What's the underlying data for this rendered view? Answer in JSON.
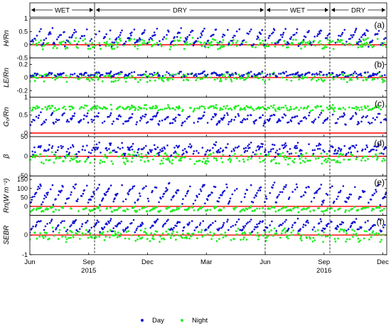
{
  "chart_data": {
    "type": "scatter",
    "seasons": [
      {
        "label": "WET",
        "start": 0.0,
        "end": 3.3
      },
      {
        "label": "DRY",
        "start": 3.3,
        "end": 12.0
      },
      {
        "label": "WET",
        "start": 12.0,
        "end": 15.3
      },
      {
        "label": "DRY",
        "start": 15.3,
        "end": 18.2
      }
    ],
    "x_month_index_range": [
      0,
      18.2
    ],
    "xticks": [
      {
        "pos": 0,
        "label": "Jun",
        "year": ""
      },
      {
        "pos": 3,
        "label": "Sep",
        "year": "2015"
      },
      {
        "pos": 6,
        "label": "Dec",
        "year": ""
      },
      {
        "pos": 9,
        "label": "Mar",
        "year": ""
      },
      {
        "pos": 12,
        "label": "Jun",
        "year": ""
      },
      {
        "pos": 15,
        "label": "Sep",
        "year": "2016"
      },
      {
        "pos": 18,
        "label": "Dec",
        "year": ""
      }
    ],
    "panels": [
      {
        "id": "a",
        "label": "(a)",
        "ylabel": "H/Rn",
        "ylim": [
          -0.5,
          1
        ],
        "yticks": [
          "1",
          "0.5",
          "0",
          "-0.5"
        ],
        "ytick_values": [
          1,
          0.5,
          0,
          -0.5
        ],
        "refline": 0,
        "day": {
          "base": 0.0,
          "amp": 0.6,
          "noise": 0.08
        },
        "night": {
          "base": 0.05,
          "amp": 0.2,
          "noise": 0.15
        }
      },
      {
        "id": "b",
        "label": "(b)",
        "ylabel": "LE/Rn",
        "ylim": [
          -0.3,
          0.3
        ],
        "yticks": [
          "0.2",
          "0",
          "-0.2"
        ],
        "ytick_values": [
          0.2,
          0,
          -0.2
        ],
        "refline": 0,
        "day": {
          "base": 0.02,
          "amp": 0.06,
          "noise": 0.02
        },
        "night": {
          "base": 0.0,
          "amp": 0.05,
          "noise": 0.06
        }
      },
      {
        "id": "c",
        "label": "(c)",
        "ylabel": "G₀/Rn",
        "ylim": [
          -0.1,
          1
        ],
        "yticks": [
          "1",
          "0.5",
          "0"
        ],
        "ytick_values": [
          1,
          0.5,
          0
        ],
        "refline": 0,
        "day": {
          "base": 0.25,
          "amp": 0.3,
          "noise": 0.05
        },
        "night": {
          "base": 0.7,
          "amp": 0.1,
          "noise": 0.05
        }
      },
      {
        "id": "d",
        "label": "(d)",
        "ylabel": "β",
        "ylim": [
          -50,
          50
        ],
        "yticks": [
          "50",
          "0",
          "-50"
        ],
        "ytick_values": [
          50,
          0,
          -50
        ],
        "refline": 0,
        "day": {
          "base": 5,
          "amp": 25,
          "noise": 8
        },
        "night": {
          "base": -5,
          "amp": 10,
          "noise": 12
        }
      },
      {
        "id": "e",
        "label": "(e)",
        "ylabel": "Rn(W m⁻²)",
        "ylim": [
          -50,
          170
        ],
        "yticks": [
          "150",
          "100",
          "50",
          "0"
        ],
        "ytick_values": [
          150,
          100,
          50,
          0
        ],
        "refline": 0,
        "day": {
          "base": 20,
          "amp": 110,
          "noise": 12
        },
        "night": {
          "base": -15,
          "amp": 25,
          "noise": 6
        }
      },
      {
        "id": "f",
        "label": "(f)",
        "ylabel": "SEBR",
        "ylim": [
          -1,
          1
        ],
        "yticks": [
          "0",
          "-1"
        ],
        "ytick_values": [
          0,
          -1
        ],
        "refline": 0,
        "day": {
          "base": 0.2,
          "amp": 0.6,
          "noise": 0.08
        },
        "night": {
          "base": 0.0,
          "amp": 0.3,
          "noise": 0.25
        }
      }
    ],
    "legend": {
      "placement": "bottom-center",
      "entries": [
        {
          "name": "Day",
          "color": "#1010d0"
        },
        {
          "name": "Night",
          "color": "#22ee22"
        }
      ]
    },
    "reference_line_color": "#ff0000"
  }
}
